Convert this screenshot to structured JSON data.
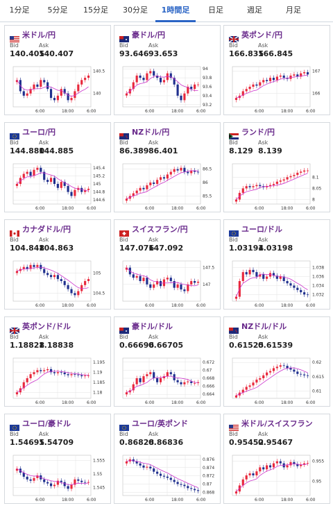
{
  "tabs": [
    {
      "label": "1分足",
      "active": false
    },
    {
      "label": "5分足",
      "active": false
    },
    {
      "label": "15分足",
      "active": false
    },
    {
      "label": "30分足",
      "active": false
    },
    {
      "label": "1時間足",
      "active": true
    },
    {
      "label": "日足",
      "active": false
    },
    {
      "label": "週足",
      "active": false
    },
    {
      "label": "月足",
      "active": false
    }
  ],
  "labels": {
    "bid": "Bid",
    "ask": "Ask"
  },
  "colors": {
    "up": "#e8283c",
    "down": "#1f2f8e",
    "ma": "#cc33cc",
    "grid": "#e2e2e2",
    "pair": "#6a2b8c"
  },
  "cards": [
    {
      "pair": "米ドル/円",
      "flag": "us-flag",
      "bid": "140.405",
      "ask": "140.407",
      "chart_data": {
        "type": "candlestick",
        "yticks": [
          "140.5",
          "140"
        ],
        "ylim": [
          139.7,
          140.6
        ],
        "xticks": [
          "6:00",
          "18:00",
          "6:00"
        ],
        "trend": [
          140.3,
          140.05,
          139.95,
          140.0,
          140.1,
          140.2,
          140.15,
          140.3,
          140.25,
          140.1,
          139.9,
          139.85,
          139.95,
          140.1,
          140.0,
          139.85,
          139.9,
          140.05,
          140.2,
          140.3,
          140.35,
          140.4
        ]
      }
    },
    {
      "pair": "豪ドル/円",
      "flag": "au-flag",
      "bid": "93.646",
      "ask": "93.653",
      "chart_data": {
        "type": "candlestick",
        "yticks": [
          "94",
          "93.8",
          "93.6",
          "93.4",
          "93.2"
        ],
        "ylim": [
          93.15,
          94.05
        ],
        "xticks": [
          "6:00",
          "18:00",
          "6:00"
        ],
        "trend": [
          93.45,
          93.55,
          93.7,
          93.85,
          93.8,
          93.75,
          93.9,
          93.95,
          93.85,
          93.8,
          93.7,
          93.75,
          93.9,
          93.8,
          93.65,
          93.4,
          93.3,
          93.45,
          93.6,
          93.55,
          93.65,
          93.65
        ]
      }
    },
    {
      "pair": "英ポンド/円",
      "flag": "gb-flag",
      "bid": "166.835",
      "ask": "166.845",
      "chart_data": {
        "type": "candlestick",
        "yticks": [
          "167",
          "166"
        ],
        "ylim": [
          165.4,
          167.2
        ],
        "xticks": [
          "6:00",
          "18:00",
          "6:00"
        ],
        "trend": [
          165.8,
          165.9,
          166.1,
          166.2,
          166.3,
          166.4,
          166.35,
          166.5,
          166.6,
          166.55,
          166.7,
          166.6,
          166.75,
          166.8,
          166.7,
          166.65,
          166.8,
          166.85,
          166.75,
          166.9,
          166.95,
          166.85
        ]
      }
    },
    {
      "pair": "ユーロ/円",
      "flag": "eu-flag",
      "bid": "144.880",
      "ask": "144.885",
      "chart_data": {
        "type": "candlestick",
        "yticks": [
          "145.4",
          "145.2",
          "145",
          "144.8",
          "144.6"
        ],
        "ylim": [
          144.5,
          145.5
        ],
        "xticks": [
          "6:00",
          "18:00",
          "6:00"
        ],
        "trend": [
          145.0,
          145.15,
          145.25,
          145.3,
          145.2,
          145.35,
          145.4,
          145.3,
          145.1,
          145.05,
          145.15,
          145.0,
          144.9,
          145.05,
          144.95,
          144.8,
          144.7,
          144.85,
          144.9,
          144.8,
          144.85,
          144.88
        ]
      }
    },
    {
      "pair": "NZドル/円",
      "flag": "nz-flag",
      "bid": "86.389",
      "ask": "86.401",
      "chart_data": {
        "type": "candlestick",
        "yticks": [
          "86.5",
          "86",
          "85.5"
        ],
        "ylim": [
          85.2,
          86.7
        ],
        "xticks": [
          "6:00",
          "18:00",
          "6:00"
        ],
        "trend": [
          85.4,
          85.5,
          85.6,
          85.7,
          85.8,
          85.75,
          85.9,
          86.0,
          85.95,
          86.1,
          86.2,
          86.15,
          86.3,
          86.4,
          86.5,
          86.45,
          86.55,
          86.4,
          86.35,
          86.45,
          86.4,
          86.39
        ]
      }
    },
    {
      "pair": "ランド/円",
      "flag": "za-flag",
      "bid": "8.129",
      "ask": "8.139",
      "chart_data": {
        "type": "candlestick",
        "yticks": [
          "8.1",
          "8.05",
          "8"
        ],
        "ylim": [
          7.98,
          8.16
        ],
        "xticks": [
          "6:00",
          "18:00",
          "6:00"
        ],
        "trend": [
          8.0,
          8.03,
          8.05,
          8.06,
          8.055,
          8.06,
          8.065,
          8.06,
          8.055,
          8.06,
          8.065,
          8.07,
          8.08,
          8.085,
          8.09,
          8.1,
          8.105,
          8.11,
          8.12,
          8.125,
          8.13,
          8.13
        ]
      }
    },
    {
      "pair": "カナダドル/円",
      "flag": "ca-flag",
      "bid": "104.848",
      "ask": "104.863",
      "chart_data": {
        "type": "candlestick",
        "yticks": [
          "105",
          "104.5"
        ],
        "ylim": [
          104.3,
          105.3
        ],
        "xticks": [
          "6:00",
          "18:00",
          "6:00"
        ],
        "trend": [
          105.05,
          105.1,
          105.15,
          105.1,
          105.2,
          105.15,
          105.2,
          105.1,
          105.0,
          104.95,
          104.9,
          104.95,
          104.85,
          104.8,
          104.7,
          104.6,
          104.5,
          104.45,
          104.55,
          104.7,
          104.8,
          104.85
        ]
      }
    },
    {
      "pair": "スイスフラン/円",
      "flag": "ch-flag",
      "bid": "147.076",
      "ask": "147.092",
      "chart_data": {
        "type": "candlestick",
        "yticks": [
          "147.5",
          "147"
        ],
        "ylim": [
          146.5,
          147.7
        ],
        "xticks": [
          "6:00",
          "18:00",
          "6:00"
        ],
        "trend": [
          147.5,
          147.3,
          147.2,
          147.25,
          147.1,
          147.2,
          147.0,
          146.9,
          147.0,
          147.1,
          146.95,
          147.15,
          147.2,
          147.1,
          146.9,
          147.0,
          146.85,
          146.8,
          147.0,
          147.1,
          147.05,
          147.08
        ]
      }
    },
    {
      "pair": "ユーロ/ドル",
      "flag": "eu-flag",
      "bid": "1.03194",
      "ask": "1.03198",
      "chart_data": {
        "type": "candlestick",
        "yticks": [
          "1.038",
          "1.036",
          "1.034",
          "1.032"
        ],
        "ylim": [
          1.0305,
          1.0395
        ],
        "xticks": [
          "6:00",
          "18:00",
          "6:00"
        ],
        "trend": [
          1.0315,
          1.035,
          1.037,
          1.0365,
          1.0375,
          1.037,
          1.036,
          1.0365,
          1.0355,
          1.036,
          1.0368,
          1.0362,
          1.0355,
          1.036,
          1.035,
          1.0345,
          1.034,
          1.0335,
          1.033,
          1.0325,
          1.032,
          1.0319
        ]
      }
    },
    {
      "pair": "英ポンド/ドル",
      "flag": "gb-flag",
      "bid": "1.18828",
      "ask": "1.18838",
      "chart_data": {
        "type": "candlestick",
        "yticks": [
          "1.195",
          "1.19",
          "1.185",
          "1.18"
        ],
        "ylim": [
          1.177,
          1.197
        ],
        "xticks": [
          "6:00",
          "18:00",
          "6:00"
        ],
        "trend": [
          1.18,
          1.182,
          1.185,
          1.187,
          1.189,
          1.19,
          1.191,
          1.1905,
          1.191,
          1.1915,
          1.19,
          1.1895,
          1.19,
          1.1898,
          1.189,
          1.1885,
          1.189,
          1.1888,
          1.1885,
          1.188,
          1.1883,
          1.1883
        ]
      }
    },
    {
      "pair": "豪ドル/ドル",
      "flag": "au-flag",
      "bid": "0.66696",
      "ask": "0.66705",
      "chart_data": {
        "type": "candlestick",
        "yticks": [
          "0.672",
          "0.67",
          "0.668",
          "0.666",
          "0.664"
        ],
        "ylim": [
          0.663,
          0.673
        ],
        "xticks": [
          "6:00",
          "18:00",
          "6:00"
        ],
        "trend": [
          0.6645,
          0.665,
          0.6665,
          0.668,
          0.667,
          0.6685,
          0.669,
          0.6695,
          0.668,
          0.667,
          0.668,
          0.6685,
          0.6695,
          0.669,
          0.6675,
          0.667,
          0.6665,
          0.667,
          0.6672,
          0.6668,
          0.6668,
          0.667
        ]
      }
    },
    {
      "pair": "NZドル/ドル",
      "flag": "nz-flag",
      "bid": "0.61525",
      "ask": "0.61539",
      "chart_data": {
        "type": "candlestick",
        "yticks": [
          "0.62",
          "0.615",
          "0.61"
        ],
        "ylim": [
          0.6075,
          0.6215
        ],
        "xticks": [
          "6:00",
          "18:00",
          "6:00"
        ],
        "trend": [
          0.6085,
          0.6095,
          0.6105,
          0.6115,
          0.612,
          0.613,
          0.614,
          0.6145,
          0.6155,
          0.6165,
          0.617,
          0.618,
          0.6185,
          0.619,
          0.6188,
          0.618,
          0.6175,
          0.6168,
          0.616,
          0.6158,
          0.6155,
          0.6153
        ]
      }
    },
    {
      "pair": "ユーロ/豪ドル",
      "flag": "eu-flag",
      "bid": "1.54695",
      "ask": "1.54709",
      "chart_data": {
        "type": "candlestick",
        "yticks": [
          "1.555",
          "1.55",
          "1.545"
        ],
        "ylim": [
          1.542,
          1.557
        ],
        "xticks": [
          "6:00",
          "18:00",
          "6:00"
        ],
        "trend": [
          1.552,
          1.5505,
          1.549,
          1.548,
          1.5475,
          1.5485,
          1.5495,
          1.548,
          1.547,
          1.5465,
          1.5455,
          1.546,
          1.5475,
          1.547,
          1.5455,
          1.5445,
          1.546,
          1.548,
          1.5475,
          1.547,
          1.5468,
          1.547
        ]
      }
    },
    {
      "pair": "ユーロ/英ポンド",
      "flag": "eu-flag",
      "bid": "0.86828",
      "ask": "0.86836",
      "chart_data": {
        "type": "candlestick",
        "yticks": [
          "0.876",
          "0.874",
          "0.872",
          "0.87",
          "0.868"
        ],
        "ylim": [
          0.8672,
          0.877
        ],
        "xticks": [
          "6:00",
          "18:00",
          "6:00"
        ],
        "trend": [
          0.8755,
          0.876,
          0.8755,
          0.875,
          0.8745,
          0.874,
          0.8742,
          0.8738,
          0.873,
          0.8725,
          0.872,
          0.8718,
          0.8715,
          0.871,
          0.8705,
          0.87,
          0.8698,
          0.8695,
          0.869,
          0.8688,
          0.8685,
          0.8683
        ]
      }
    },
    {
      "pair": "米ドル/スイスフラン",
      "flag": "us-flag",
      "bid": "0.95452",
      "ask": "0.95467",
      "chart_data": {
        "type": "candlestick",
        "yticks": [
          "0.955",
          "0.95"
        ],
        "ylim": [
          0.9465,
          0.9565
        ],
        "xticks": [
          "6:00",
          "18:00",
          "6:00"
        ],
        "trend": [
          0.9475,
          0.949,
          0.9505,
          0.9515,
          0.952,
          0.9515,
          0.9525,
          0.9535,
          0.953,
          0.954,
          0.9535,
          0.9545,
          0.955,
          0.9545,
          0.9535,
          0.954,
          0.9548,
          0.9543,
          0.9538,
          0.9542,
          0.9545,
          0.9546
        ]
      }
    }
  ]
}
